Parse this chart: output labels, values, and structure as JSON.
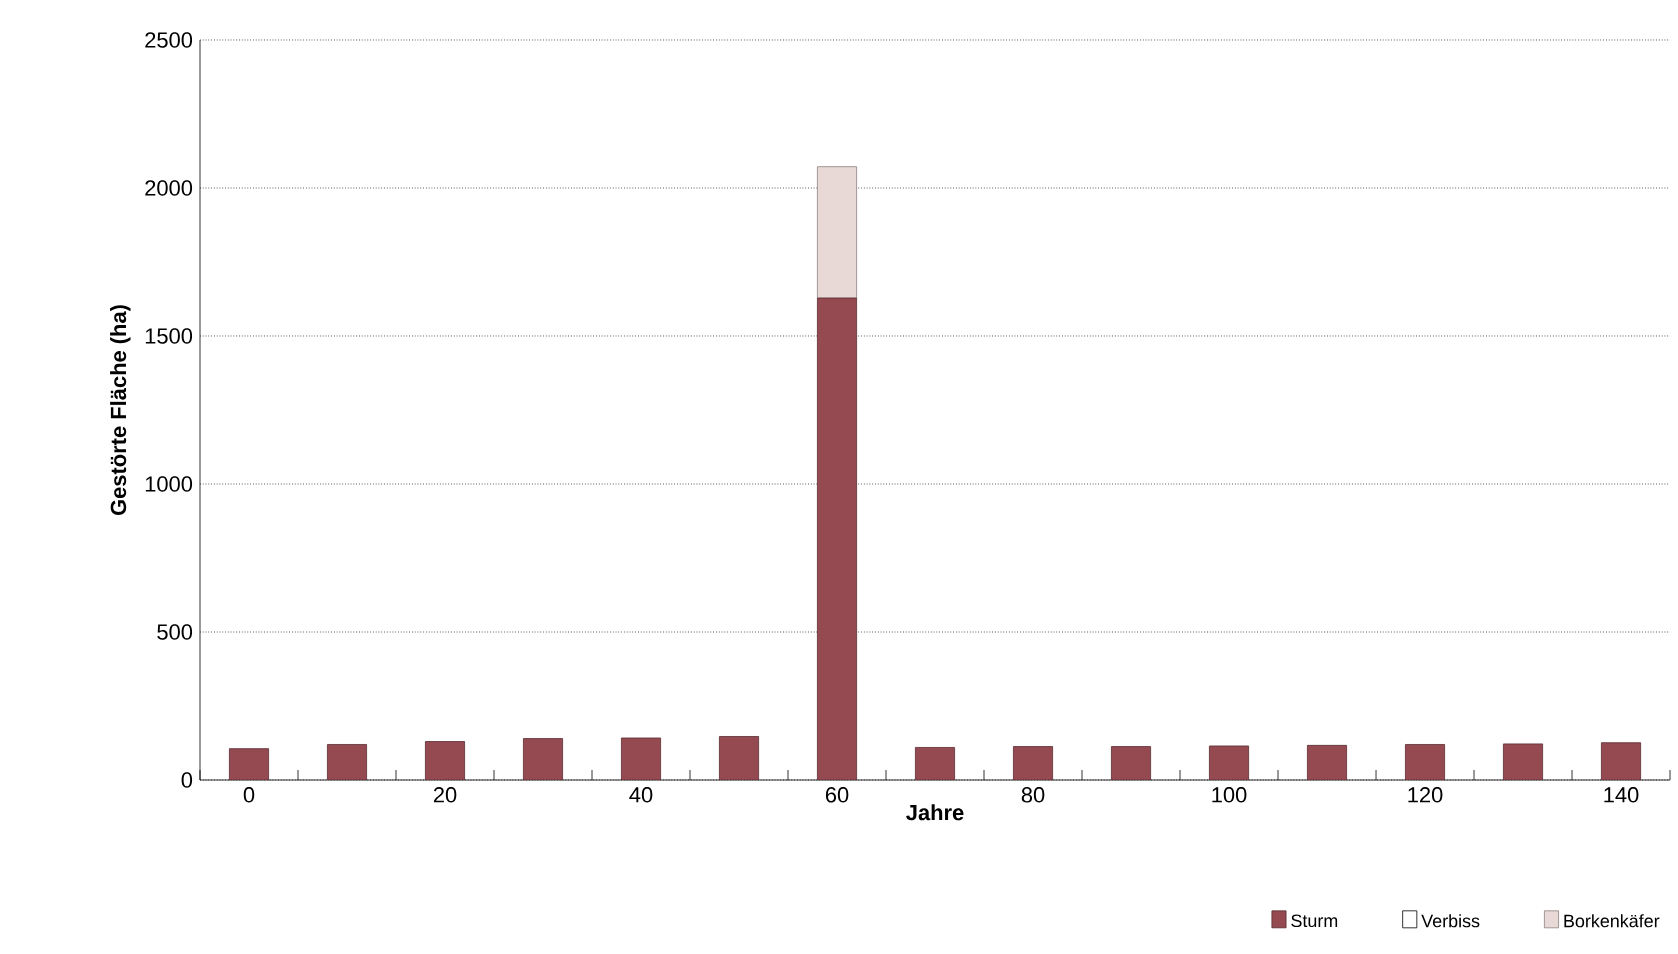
{
  "chart_data": {
    "type": "bar",
    "stacked": true,
    "xlabel": "Jahre",
    "ylabel": "Gestörte Fläche (ha)",
    "categories": [
      "0",
      null,
      "20",
      null,
      "40",
      null,
      "60",
      null,
      "80",
      null,
      "100",
      null,
      "120",
      null,
      "140"
    ],
    "series": [
      {
        "name": "Sturm",
        "color": "#954a51",
        "values": [
          106,
          120,
          130,
          140,
          142,
          147,
          1628,
          110,
          113,
          113,
          115,
          117,
          120,
          122,
          126
        ]
      },
      {
        "name": "Verbiss",
        "color": "#ffffff",
        "values": [
          0,
          0,
          0,
          0,
          0,
          0,
          0,
          0,
          0,
          0,
          0,
          0,
          0,
          0,
          0
        ]
      },
      {
        "name": "Borkenkäfer",
        "color": "#e8d8d6",
        "values": [
          0,
          0,
          0,
          0,
          0,
          0,
          444,
          0,
          0,
          0,
          0,
          0,
          0,
          0,
          0
        ]
      }
    ],
    "ylim": [
      0,
      2500
    ],
    "yticks": [
      0,
      500,
      1000,
      1500,
      2000,
      2500
    ],
    "grid": "y",
    "legend": "bottom right"
  }
}
